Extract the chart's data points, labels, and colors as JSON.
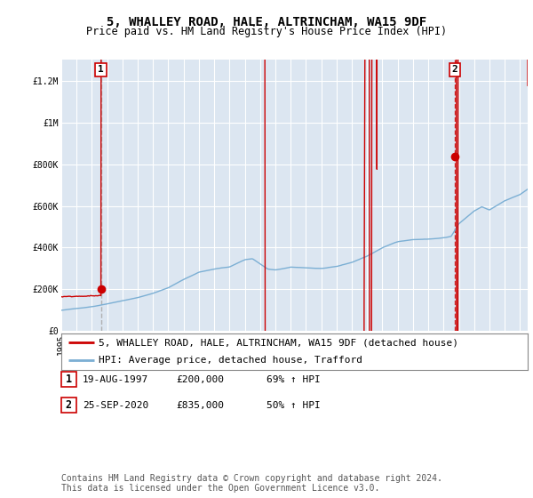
{
  "title": "5, WHALLEY ROAD, HALE, ALTRINCHAM, WA15 9DF",
  "subtitle": "Price paid vs. HM Land Registry's House Price Index (HPI)",
  "ylabel_ticks": [
    "£0",
    "£200K",
    "£400K",
    "£600K",
    "£800K",
    "£1M",
    "£1.2M"
  ],
  "ytick_values": [
    0,
    200000,
    400000,
    600000,
    800000,
    1000000,
    1200000
  ],
  "ylim": [
    0,
    1300000
  ],
  "xlim_start": 1995.0,
  "xlim_end": 2025.5,
  "plot_bg_color": "#dce6f1",
  "grid_color": "#ffffff",
  "red_line_color": "#cc0000",
  "blue_line_color": "#7bafd4",
  "sale1_year": 1997.63,
  "sale1_price": 200000,
  "sale2_year": 2020.73,
  "sale2_price": 835000,
  "legend_label_red": "5, WHALLEY ROAD, HALE, ALTRINCHAM, WA15 9DF (detached house)",
  "legend_label_blue": "HPI: Average price, detached house, Trafford",
  "annotation1_label": "1",
  "annotation2_label": "2",
  "table_rows": [
    {
      "num": "1",
      "date": "19-AUG-1997",
      "price": "£200,000",
      "hpi": "69% ↑ HPI"
    },
    {
      "num": "2",
      "date": "25-SEP-2020",
      "price": "£835,000",
      "hpi": "50% ↑ HPI"
    }
  ],
  "footer": "Contains HM Land Registry data © Crown copyright and database right 2024.\nThis data is licensed under the Open Government Licence v3.0.",
  "title_fontsize": 10,
  "subtitle_fontsize": 8.5,
  "tick_fontsize": 7,
  "legend_fontsize": 8,
  "table_fontsize": 8,
  "footer_fontsize": 7
}
